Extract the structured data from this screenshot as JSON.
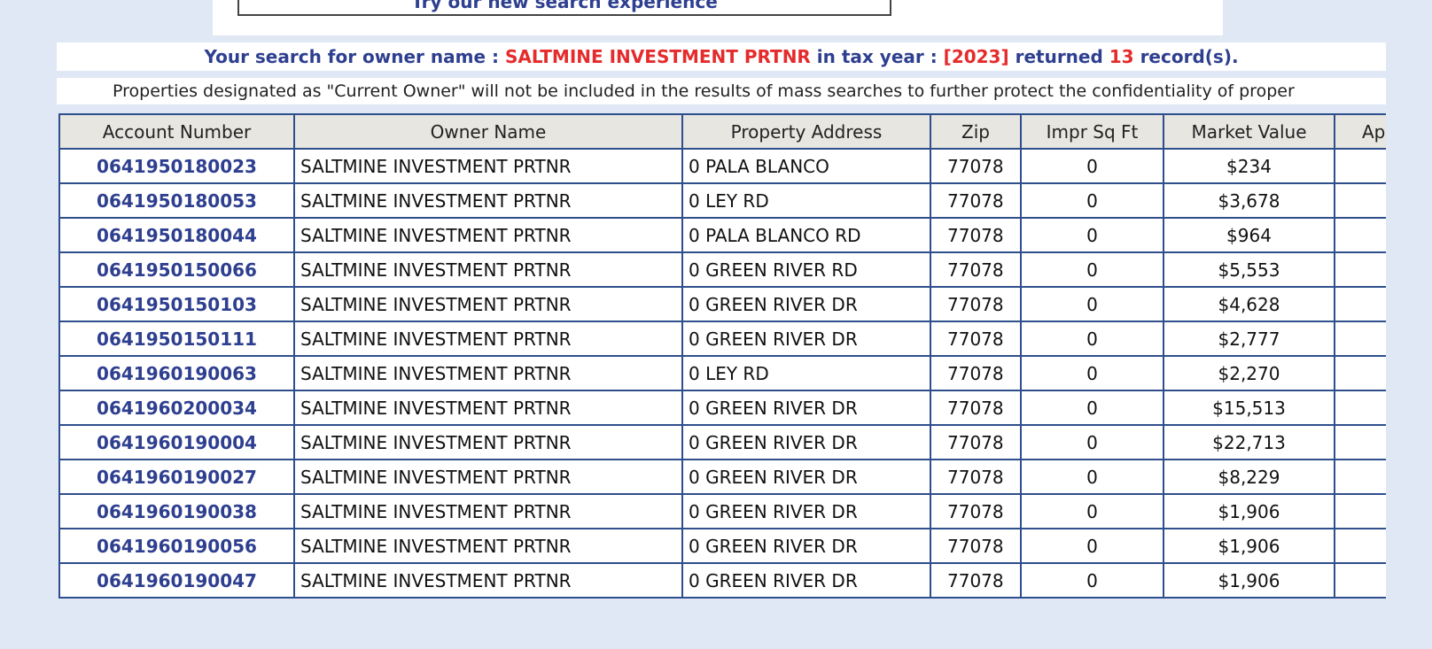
{
  "search_banner": {
    "label": "Try our new search experience"
  },
  "summary": {
    "prefix": "Your search for owner name : ",
    "owner": "SALTMINE INVESTMENT PRTNR",
    "middle": " in tax year : ",
    "year": "[2023]",
    "returned": " returned ",
    "count": "13",
    "suffix": " record(s)."
  },
  "note": "Properties designated as \"Current Owner\" will not be included in the results of mass searches to further protect the confidentiality of proper",
  "table": {
    "headers": [
      "Account Number",
      "Owner Name",
      "Property Address",
      "Zip",
      "Impr Sq Ft",
      "Market Value",
      "Ap"
    ],
    "rows": [
      {
        "account": "0641950180023",
        "owner": "SALTMINE INVESTMENT PRTNR",
        "address": "0 PALA BLANCO",
        "zip": "77078",
        "impr": "0",
        "market": "$234"
      },
      {
        "account": "0641950180053",
        "owner": "SALTMINE INVESTMENT PRTNR",
        "address": "0 LEY RD",
        "zip": "77078",
        "impr": "0",
        "market": "$3,678"
      },
      {
        "account": "0641950180044",
        "owner": "SALTMINE INVESTMENT PRTNR",
        "address": "0 PALA BLANCO RD",
        "zip": "77078",
        "impr": "0",
        "market": "$964"
      },
      {
        "account": "0641950150066",
        "owner": "SALTMINE INVESTMENT PRTNR",
        "address": "0 GREEN RIVER RD",
        "zip": "77078",
        "impr": "0",
        "market": "$5,553"
      },
      {
        "account": "0641950150103",
        "owner": "SALTMINE INVESTMENT PRTNR",
        "address": "0 GREEN RIVER DR",
        "zip": "77078",
        "impr": "0",
        "market": "$4,628"
      },
      {
        "account": "0641950150111",
        "owner": "SALTMINE INVESTMENT PRTNR",
        "address": "0 GREEN RIVER DR",
        "zip": "77078",
        "impr": "0",
        "market": "$2,777"
      },
      {
        "account": "0641960190063",
        "owner": "SALTMINE INVESTMENT PRTNR",
        "address": "0 LEY RD",
        "zip": "77078",
        "impr": "0",
        "market": "$2,270"
      },
      {
        "account": "0641960200034",
        "owner": "SALTMINE INVESTMENT PRTNR",
        "address": "0 GREEN RIVER DR",
        "zip": "77078",
        "impr": "0",
        "market": "$15,513"
      },
      {
        "account": "0641960190004",
        "owner": "SALTMINE INVESTMENT PRTNR",
        "address": "0 GREEN RIVER DR",
        "zip": "77078",
        "impr": "0",
        "market": "$22,713"
      },
      {
        "account": "0641960190027",
        "owner": "SALTMINE INVESTMENT PRTNR",
        "address": "0 GREEN RIVER DR",
        "zip": "77078",
        "impr": "0",
        "market": "$8,229"
      },
      {
        "account": "0641960190038",
        "owner": "SALTMINE INVESTMENT PRTNR",
        "address": "0 GREEN RIVER DR",
        "zip": "77078",
        "impr": "0",
        "market": "$1,906"
      },
      {
        "account": "0641960190056",
        "owner": "SALTMINE INVESTMENT PRTNR",
        "address": "0 GREEN RIVER DR",
        "zip": "77078",
        "impr": "0",
        "market": "$1,906"
      },
      {
        "account": "0641960190047",
        "owner": "SALTMINE INVESTMENT PRTNR",
        "address": "0 GREEN RIVER DR",
        "zip": "77078",
        "impr": "0",
        "market": "$1,906"
      }
    ]
  },
  "colors": {
    "link_blue": "#2e3f8f",
    "highlight_red": "#e52b2b",
    "table_border": "#2e4f8c",
    "header_bg": "#e7e6e1",
    "page_bg": "#dfe8f4"
  }
}
